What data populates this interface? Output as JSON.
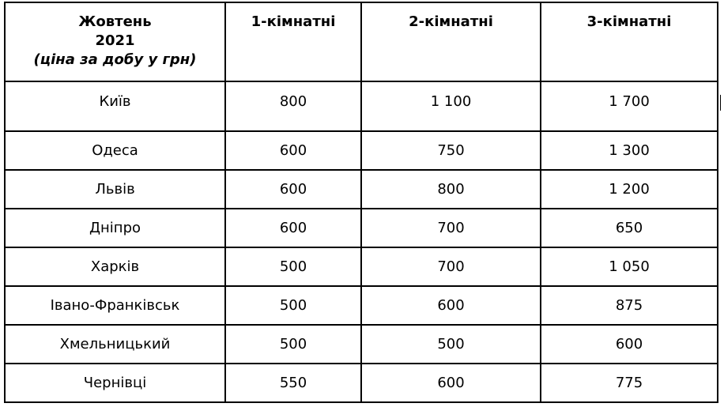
{
  "header": {
    "title_line1": "Жовтень",
    "title_line2": "2021",
    "title_line3": "(ціна за добу у грн)",
    "columns": [
      "1-кімнатні",
      "2-кімнатні",
      "3-кімнатні"
    ]
  },
  "rows": [
    {
      "city": "Київ",
      "values": [
        "800",
        "1 100",
        "1 700"
      ]
    },
    {
      "city": "Одеса",
      "values": [
        "600",
        "750",
        "1 300"
      ]
    },
    {
      "city": "Львів",
      "values": [
        "600",
        "800",
        "1 200"
      ]
    },
    {
      "city": "Дніпро",
      "values": [
        "600",
        "700",
        "650"
      ]
    },
    {
      "city": "Харків",
      "values": [
        "500",
        "700",
        "1 050"
      ]
    },
    {
      "city": "Івано-Франківськ",
      "values": [
        "500",
        "600",
        "875"
      ]
    },
    {
      "city": "Хмельницький",
      "values": [
        "500",
        "500",
        "600"
      ]
    },
    {
      "city": "Чернівці",
      "values": [
        "550",
        "600",
        "775"
      ]
    }
  ]
}
